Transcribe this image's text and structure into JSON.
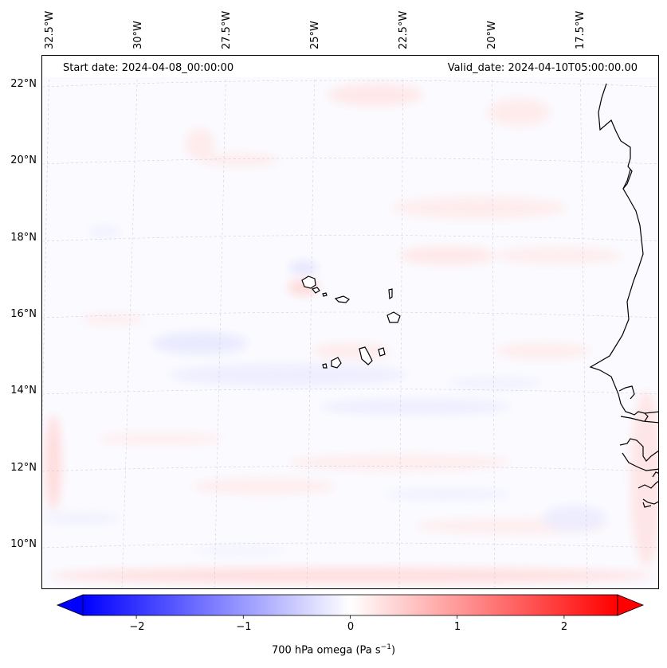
{
  "map": {
    "start_label": "Start date: 2024-04-08_00:00:00",
    "valid_label": "Valid_date: 2024-04-10T05:00:00.00",
    "longitude_labels": [
      "32.5°W",
      "30°W",
      "27.5°W",
      "25°W",
      "22.5°W",
      "20°W",
      "17.5°W"
    ],
    "latitude_labels": [
      "22°N",
      "20°N",
      "18°N",
      "16°N",
      "14°N",
      "12°N",
      "10°N"
    ]
  },
  "colorbar": {
    "label_prefix": "700 hPa omega (Pa s",
    "label_exponent": "−1",
    "label_suffix": ")",
    "ticks": [
      "−2",
      "−1",
      "0",
      "1",
      "2"
    ],
    "tick_values": [
      -2,
      -1,
      0,
      1,
      2
    ],
    "range": [
      -2.5,
      2.5
    ],
    "extend": "both",
    "colors": {
      "negative": "#0000ff",
      "zero": "#ffffff",
      "positive": "#ff0000"
    }
  },
  "colors": {
    "coastline": "#000000",
    "gridline": "#bdbdd6",
    "background": "#fbfbff"
  }
}
